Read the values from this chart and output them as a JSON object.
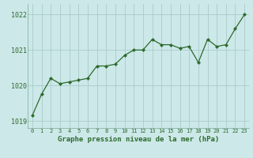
{
  "x": [
    0,
    1,
    2,
    3,
    4,
    5,
    6,
    7,
    8,
    9,
    10,
    11,
    12,
    13,
    14,
    15,
    16,
    17,
    18,
    19,
    20,
    21,
    22,
    23
  ],
  "y": [
    1019.15,
    1019.75,
    1020.2,
    1020.05,
    1020.1,
    1020.15,
    1020.2,
    1020.55,
    1020.55,
    1020.6,
    1020.85,
    1021.0,
    1021.0,
    1021.3,
    1021.15,
    1021.15,
    1021.05,
    1021.1,
    1020.65,
    1021.3,
    1021.1,
    1021.15,
    1021.6,
    1022.0
  ],
  "line_color": "#2d6a2d",
  "marker_color": "#2d6a2d",
  "bg_color": "#cce8e8",
  "grid_color": "#aacccc",
  "xlabel": "Graphe pression niveau de la mer (hPa)",
  "xlabel_color": "#2d6a2d",
  "tick_color": "#2d6a2d",
  "ylim": [
    1018.8,
    1022.3
  ],
  "yticks": [
    1019,
    1020,
    1021,
    1022
  ],
  "xticks": [
    0,
    1,
    2,
    3,
    4,
    5,
    6,
    7,
    8,
    9,
    10,
    11,
    12,
    13,
    14,
    15,
    16,
    17,
    18,
    19,
    20,
    21,
    22,
    23
  ]
}
